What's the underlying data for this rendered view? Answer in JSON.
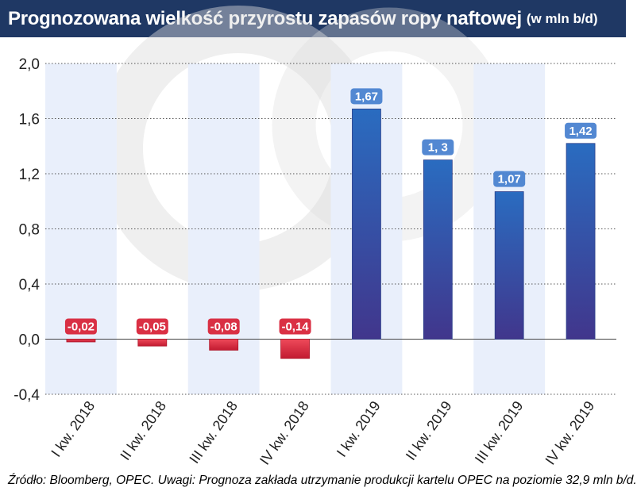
{
  "title": "Prognozowana wielkość przyrostu zapasów ropy naftowej",
  "unit": "(w mln b/d)",
  "source": "Źródło: Bloomberg, OPEC. Uwagi: Prognoza zakłada utrzymanie produkcji kartelu OPEC na poziomie 32,9 mln b/d.",
  "colors": {
    "header_bg": "#1f3864",
    "negative_bar": "#d8253a",
    "positive_bar_top": "#2a6cc0",
    "positive_bar_bottom": "#41368c",
    "band": "#e9effb",
    "label_negative_bg": "#d8253a",
    "label_positive_bg": "#4a82d0"
  },
  "chart_data": {
    "type": "bar",
    "categories": [
      "I kw. 2018",
      "II kw. 2018",
      "III kw. 2018",
      "IV kw. 2018",
      "I kw. 2019",
      "II kw. 2019",
      "III kw. 2019",
      "IV kw. 2019"
    ],
    "values": [
      -0.02,
      -0.05,
      -0.08,
      -0.14,
      1.67,
      1.3,
      1.07,
      1.42
    ],
    "data_labels": [
      "-0,02",
      "-0,05",
      "-0,08",
      "-0,14",
      "1,67",
      "1, 3",
      "1,07",
      "1,42"
    ],
    "y_ticks": [
      2.0,
      1.6,
      1.2,
      0.8,
      0.4,
      0.0,
      -0.4
    ],
    "y_tick_labels": [
      "2,0",
      "1,6",
      "1,2",
      "0,8",
      "0,4",
      "0,0",
      "-0,4"
    ],
    "ylim": [
      -0.4,
      2.0
    ],
    "grid": true,
    "xlabel": "",
    "ylabel": ""
  }
}
